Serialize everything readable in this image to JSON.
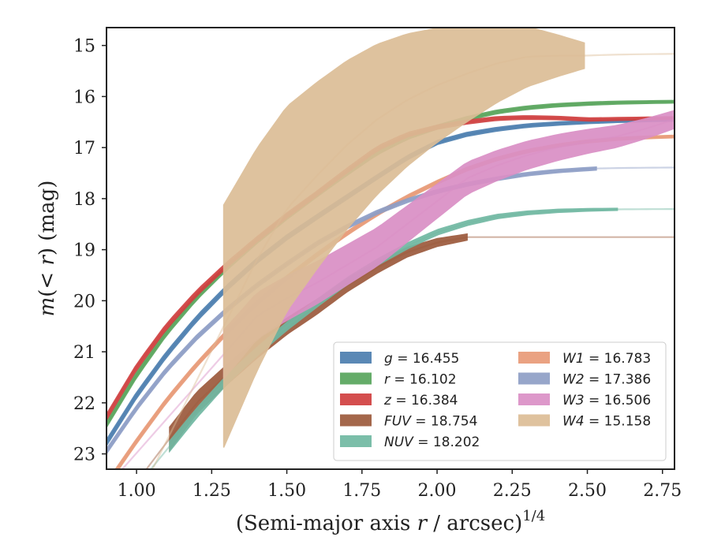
{
  "chart_data": {
    "type": "line",
    "xlabel": "(Semi-major axis r / arcsec)",
    "xlabel_parts": {
      "main": "(Semi-major axis ",
      "var": "r",
      "rest": " / arcsec)",
      "sup": "1/4"
    },
    "ylabel": "m(< r) (mag)",
    "ylabel_parts": {
      "var": "m",
      "paren": "(< ",
      "var2": "r",
      "close": ")",
      "unit": " (mag)"
    },
    "xlim": [
      0.9,
      2.79
    ],
    "ylim": [
      23.3,
      14.65
    ],
    "y_inverted": true,
    "xticks": [
      1.0,
      1.25,
      1.5,
      1.75,
      2.0,
      2.25,
      2.5,
      2.75
    ],
    "xtick_labels": [
      "1.00",
      "1.25",
      "1.50",
      "1.75",
      "2.00",
      "2.25",
      "2.50",
      "2.75"
    ],
    "yticks": [
      15,
      16,
      17,
      18,
      19,
      20,
      21,
      22,
      23
    ],
    "ytick_labels": [
      "15",
      "16",
      "17",
      "18",
      "19",
      "20",
      "21",
      "22",
      "23"
    ],
    "grid": false,
    "legend_position": "lower-right",
    "series": [
      {
        "name": "g",
        "legend_label": "= 16.455",
        "color": "#4c7eaf",
        "asymptote": 16.455,
        "data_end": 2.79,
        "curve": [
          [
            0.9,
            22.78
          ],
          [
            1.0,
            21.85
          ],
          [
            1.1,
            21.05
          ],
          [
            1.2,
            20.35
          ],
          [
            1.3,
            19.75
          ],
          [
            1.4,
            19.22
          ],
          [
            1.5,
            18.76
          ],
          [
            1.6,
            18.36
          ],
          [
            1.7,
            17.97
          ],
          [
            1.8,
            17.58
          ],
          [
            1.9,
            17.2
          ],
          [
            2.0,
            16.9
          ],
          [
            2.1,
            16.74
          ],
          [
            2.2,
            16.64
          ],
          [
            2.3,
            16.57
          ],
          [
            2.4,
            16.53
          ],
          [
            2.5,
            16.5
          ],
          [
            2.6,
            16.48
          ],
          [
            2.7,
            16.465
          ],
          [
            2.79,
            16.455
          ]
        ],
        "width": [
          0.12,
          0.05
        ]
      },
      {
        "name": "r",
        "legend_label": "= 16.102",
        "color": "#58a55c",
        "asymptote": 16.102,
        "data_end": 2.79,
        "curve": [
          [
            0.9,
            22.42
          ],
          [
            1.0,
            21.45
          ],
          [
            1.1,
            20.62
          ],
          [
            1.2,
            19.93
          ],
          [
            1.3,
            19.35
          ],
          [
            1.4,
            18.83
          ],
          [
            1.5,
            18.36
          ],
          [
            1.6,
            17.92
          ],
          [
            1.7,
            17.5
          ],
          [
            1.8,
            17.1
          ],
          [
            1.9,
            16.8
          ],
          [
            2.0,
            16.6
          ],
          [
            2.1,
            16.43
          ],
          [
            2.2,
            16.3
          ],
          [
            2.3,
            16.22
          ],
          [
            2.4,
            16.17
          ],
          [
            2.5,
            16.14
          ],
          [
            2.6,
            16.12
          ],
          [
            2.7,
            16.11
          ],
          [
            2.79,
            16.102
          ]
        ],
        "width": [
          0.12,
          0.05
        ]
      },
      {
        "name": "z",
        "legend_label": "= 16.384",
        "color": "#d03f3f",
        "asymptote": 16.384,
        "data_end": 2.79,
        "curve": [
          [
            0.9,
            22.28
          ],
          [
            1.0,
            21.3
          ],
          [
            1.1,
            20.5
          ],
          [
            1.2,
            19.85
          ],
          [
            1.3,
            19.3
          ],
          [
            1.4,
            18.8
          ],
          [
            1.5,
            18.33
          ],
          [
            1.6,
            17.9
          ],
          [
            1.7,
            17.45
          ],
          [
            1.8,
            17.02
          ],
          [
            1.9,
            16.75
          ],
          [
            2.0,
            16.6
          ],
          [
            2.1,
            16.5
          ],
          [
            2.2,
            16.43
          ],
          [
            2.3,
            16.41
          ],
          [
            2.4,
            16.42
          ],
          [
            2.5,
            16.45
          ],
          [
            2.6,
            16.44
          ],
          [
            2.7,
            16.43
          ],
          [
            2.79,
            16.42
          ]
        ],
        "width": [
          0.12,
          0.05
        ]
      },
      {
        "name": "FUV",
        "legend_label": "= 18.754",
        "color": "#9c5a3c",
        "asymptote": 18.754,
        "data_end": 2.1,
        "data_start": 1.11,
        "curve": [
          [
            1.11,
            22.7
          ],
          [
            1.2,
            22.0
          ],
          [
            1.3,
            21.45
          ],
          [
            1.4,
            20.95
          ],
          [
            1.5,
            20.5
          ],
          [
            1.6,
            20.12
          ],
          [
            1.7,
            19.7
          ],
          [
            1.8,
            19.35
          ],
          [
            1.9,
            19.05
          ],
          [
            2.0,
            18.86
          ],
          [
            2.1,
            18.754
          ]
        ],
        "width": [
          0.45,
          0.12
        ]
      },
      {
        "name": "NUV",
        "legend_label": "= 18.202",
        "color": "#70b8a2",
        "asymptote": 18.202,
        "data_end": 2.6,
        "data_start": 1.11,
        "curve": [
          [
            1.11,
            22.85
          ],
          [
            1.2,
            22.2
          ],
          [
            1.3,
            21.55
          ],
          [
            1.4,
            21.0
          ],
          [
            1.5,
            20.5
          ],
          [
            1.6,
            20.05
          ],
          [
            1.7,
            19.62
          ],
          [
            1.8,
            19.25
          ],
          [
            1.9,
            18.93
          ],
          [
            2.0,
            18.66
          ],
          [
            2.1,
            18.48
          ],
          [
            2.2,
            18.35
          ],
          [
            2.3,
            18.28
          ],
          [
            2.4,
            18.24
          ],
          [
            2.5,
            18.22
          ],
          [
            2.6,
            18.21
          ]
        ],
        "width": [
          0.2,
          0.04
        ]
      },
      {
        "name": "W1",
        "legend_label": "= 16.783",
        "color": "#e89a77",
        "asymptote": 16.783,
        "data_end": 2.79,
        "curve": [
          [
            0.9,
            23.6
          ],
          [
            1.0,
            22.75
          ],
          [
            1.1,
            21.95
          ],
          [
            1.2,
            21.25
          ],
          [
            1.3,
            20.62
          ],
          [
            1.4,
            20.05
          ],
          [
            1.5,
            19.55
          ],
          [
            1.6,
            19.1
          ],
          [
            1.7,
            18.68
          ],
          [
            1.8,
            18.3
          ],
          [
            1.9,
            17.97
          ],
          [
            2.0,
            17.68
          ],
          [
            2.1,
            17.42
          ],
          [
            2.2,
            17.22
          ],
          [
            2.3,
            17.07
          ],
          [
            2.4,
            16.96
          ],
          [
            2.5,
            16.88
          ],
          [
            2.6,
            16.83
          ],
          [
            2.7,
            16.8
          ],
          [
            2.79,
            16.783
          ]
        ],
        "width": [
          0.1,
          0.05
        ]
      },
      {
        "name": "W2",
        "legend_label": "= 17.386",
        "color": "#8e9ec6",
        "asymptote": 17.386,
        "data_end": 2.53,
        "curve": [
          [
            0.9,
            22.95
          ],
          [
            1.0,
            22.1
          ],
          [
            1.1,
            21.35
          ],
          [
            1.2,
            20.72
          ],
          [
            1.3,
            20.18
          ],
          [
            1.4,
            19.7
          ],
          [
            1.5,
            19.28
          ],
          [
            1.6,
            18.88
          ],
          [
            1.7,
            18.55
          ],
          [
            1.8,
            18.27
          ],
          [
            1.9,
            18.04
          ],
          [
            2.0,
            17.86
          ],
          [
            2.1,
            17.72
          ],
          [
            2.2,
            17.61
          ],
          [
            2.3,
            17.52
          ],
          [
            2.4,
            17.46
          ],
          [
            2.53,
            17.41
          ]
        ],
        "width": [
          0.1,
          0.06
        ]
      },
      {
        "name": "W3",
        "legend_label": "= 16.506",
        "color": "#da8fc5",
        "asymptote": 16.506,
        "data_end": 2.79,
        "data_start": 1.29,
        "curve": [
          [
            1.29,
            21.05
          ],
          [
            1.35,
            20.65
          ],
          [
            1.4,
            20.3
          ],
          [
            1.5,
            19.95
          ],
          [
            1.6,
            19.65
          ],
          [
            1.7,
            19.3
          ],
          [
            1.8,
            18.95
          ],
          [
            1.9,
            18.5
          ],
          [
            2.0,
            18.05
          ],
          [
            2.1,
            17.6
          ],
          [
            2.2,
            17.35
          ],
          [
            2.3,
            17.15
          ],
          [
            2.4,
            17.0
          ],
          [
            2.5,
            16.88
          ],
          [
            2.6,
            16.78
          ],
          [
            2.7,
            16.62
          ],
          [
            2.79,
            16.45
          ]
        ],
        "width": [
          0.95,
          0.35
        ]
      },
      {
        "name": "W4",
        "legend_label": "= 15.158",
        "color": "#dcbd96",
        "asymptote": 15.158,
        "data_end": 2.49,
        "data_start": 1.29,
        "curve": [
          [
            1.29,
            20.5
          ],
          [
            1.4,
            19.2
          ],
          [
            1.5,
            18.2
          ],
          [
            1.6,
            17.55
          ],
          [
            1.7,
            16.95
          ],
          [
            1.8,
            16.45
          ],
          [
            1.9,
            16.07
          ],
          [
            2.0,
            15.78
          ],
          [
            2.1,
            15.55
          ],
          [
            2.2,
            15.35
          ],
          [
            2.3,
            15.22
          ],
          [
            2.4,
            15.2
          ],
          [
            2.49,
            15.2
          ]
        ],
        "width": [
          4.75,
          0.5
        ]
      }
    ]
  }
}
